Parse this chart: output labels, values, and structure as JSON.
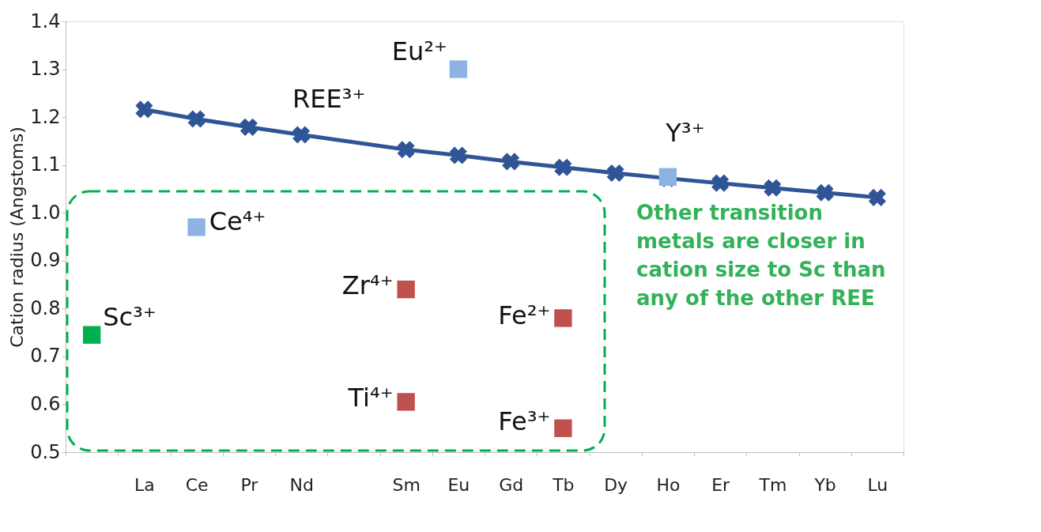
{
  "chart_data": {
    "type": "line",
    "ylabel": "Cation radius (Angstoms)",
    "categories": [
      null,
      "La",
      "Ce",
      "Pr",
      "Nd",
      null,
      "Sm",
      "Eu",
      "Gd",
      "Tb",
      "Dy",
      "Ho",
      "Er",
      "Tm",
      "Yb",
      "Lu"
    ],
    "ylim": [
      0.5,
      1.4
    ],
    "yticks": [
      0.5,
      0.6,
      0.7,
      0.8,
      0.9,
      {
        "value": 1,
        "label": "1.0"
      },
      1.1,
      1.2,
      1.3,
      1.4
    ],
    "grid": false,
    "series": [
      {
        "name": "REE³⁺",
        "marker": "cross",
        "line_style": "solid",
        "color": "#2f5597",
        "values": [
          null,
          1.216,
          1.196,
          1.179,
          1.163,
          null,
          1.132,
          1.12,
          1.107,
          1.095,
          1.083,
          1.072,
          1.062,
          1.052,
          1.042,
          1.032
        ]
      },
      {
        "name": "Eu²⁺",
        "type": "scatter",
        "marker": "square",
        "color": "#8db3e2",
        "values": [
          null,
          null,
          null,
          null,
          null,
          null,
          null,
          1.3,
          null,
          null,
          null,
          null,
          null,
          null,
          null,
          null
        ]
      },
      {
        "name": "Ce⁴⁺",
        "type": "scatter",
        "marker": "square",
        "color": "#8db3e2",
        "values": [
          null,
          null,
          0.97,
          null,
          null,
          null,
          null,
          null,
          null,
          null,
          null,
          null,
          null,
          null,
          null,
          null
        ]
      },
      {
        "name": "Y³⁺",
        "type": "scatter",
        "marker": "square",
        "color": "#8db3e2",
        "values": [
          null,
          null,
          null,
          null,
          null,
          null,
          null,
          null,
          null,
          null,
          null,
          1.075,
          null,
          null,
          null,
          null
        ]
      },
      {
        "name": "Sc³⁺",
        "type": "scatter",
        "marker": "square",
        "color": "#00b050",
        "values": [
          0.745,
          null,
          null,
          null,
          null,
          null,
          null,
          null,
          null,
          null,
          null,
          null,
          null,
          null,
          null,
          null
        ]
      },
      {
        "name": "Zr⁴⁺",
        "type": "scatter",
        "marker": "square",
        "color": "#c0504d",
        "values": [
          null,
          null,
          null,
          null,
          null,
          null,
          0.84,
          null,
          null,
          null,
          null,
          null,
          null,
          null,
          null,
          null
        ]
      },
      {
        "name": "Ti⁴⁺",
        "type": "scatter",
        "marker": "square",
        "color": "#c0504d",
        "values": [
          null,
          null,
          null,
          null,
          null,
          null,
          0.605,
          null,
          null,
          null,
          null,
          null,
          null,
          null,
          null,
          null
        ]
      },
      {
        "name": "Fe²⁺",
        "type": "scatter",
        "marker": "square",
        "color": "#c0504d",
        "values": [
          null,
          null,
          null,
          null,
          null,
          null,
          null,
          null,
          null,
          0.78,
          null,
          null,
          null,
          null,
          null,
          null
        ]
      },
      {
        "name": "Fe³⁺",
        "type": "scatter",
        "marker": "square",
        "color": "#c0504d",
        "values": [
          null,
          null,
          null,
          null,
          null,
          null,
          null,
          null,
          null,
          0.55,
          null,
          null,
          null,
          null,
          null,
          null
        ]
      }
    ],
    "annotations": [
      "Other transition metals are closer in cation size to Sc than any of the other REE"
    ]
  }
}
